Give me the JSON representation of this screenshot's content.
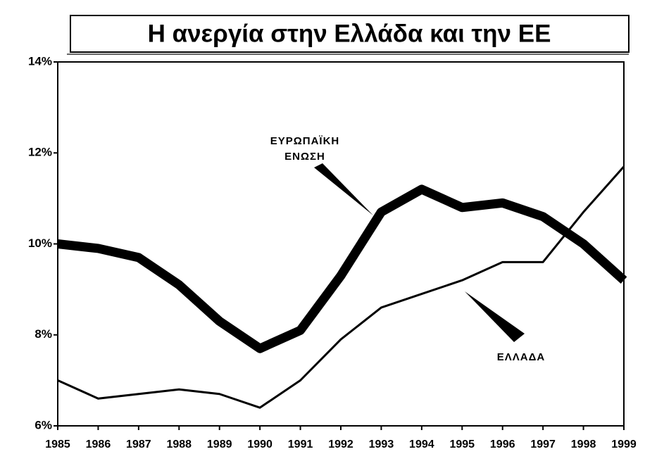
{
  "chart_data": {
    "type": "line",
    "title": "Η ανεργία στην Ελλάδα και την ΕΕ",
    "categories": [
      "1985",
      "1986",
      "1987",
      "1988",
      "1989",
      "1990",
      "1991",
      "1992",
      "1993",
      "1994",
      "1995",
      "1996",
      "1997",
      "1998",
      "1999"
    ],
    "series": [
      {
        "name": "ΕΥΡΩΠΑΪΚΗ ΕΝΩΣΗ",
        "color": "#000000",
        "values": [
          10.0,
          9.9,
          9.7,
          9.1,
          8.3,
          7.7,
          8.1,
          9.3,
          10.7,
          11.2,
          10.8,
          10.9,
          10.6,
          10.0,
          9.2
        ]
      },
      {
        "name": "ΕΛΛΑΔΑ",
        "color": "#000000",
        "values": [
          7.0,
          6.6,
          6.7,
          6.8,
          6.7,
          6.4,
          7.0,
          7.9,
          8.6,
          8.9,
          9.2,
          9.6,
          9.6,
          10.7,
          11.7
        ]
      }
    ],
    "ylim": [
      6,
      14
    ],
    "yticks": [
      {
        "value": 6,
        "label": "6%"
      },
      {
        "value": 8,
        "label": "8%"
      },
      {
        "value": 10,
        "label": "10%"
      },
      {
        "value": 12,
        "label": "12%"
      },
      {
        "value": 14,
        "label": "14%"
      }
    ]
  }
}
